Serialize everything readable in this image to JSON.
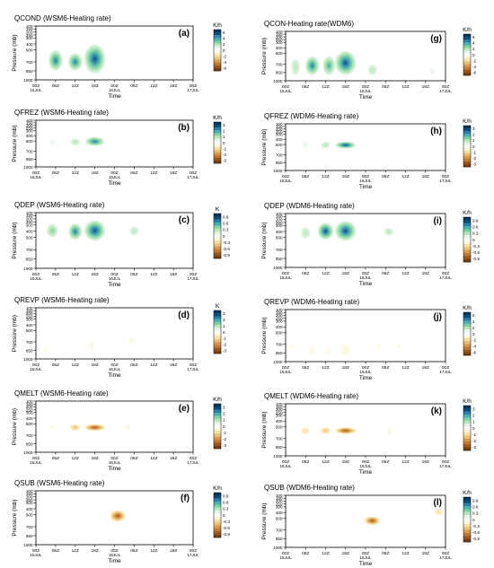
{
  "chart_data": [
    {
      "type": "heatmap",
      "letter": "(a)",
      "title": "QCOND (WSM6-Heating rate)",
      "xlabel": "Time",
      "ylabel": "Pressure (mb)",
      "x_ticks": [
        "00Z",
        "06Z",
        "12Z",
        "18Z",
        "00Z",
        "06Z",
        "12Z",
        "18Z",
        "00Z"
      ],
      "date_labels": [
        "15JUL",
        "16JUL",
        "17JUL"
      ],
      "y_ticks": [
        100,
        150,
        200,
        250,
        300,
        400,
        500,
        700,
        850,
        1000
      ],
      "unit": "K/h",
      "colorbar_ticks": [
        6,
        4,
        2,
        0,
        -2,
        -4,
        -6
      ],
      "features": [
        {
          "time_h": 6,
          "p_top": 500,
          "p_bot": 850,
          "value": 5
        },
        {
          "time_h": 12,
          "p_top": 550,
          "p_bot": 850,
          "value": 5
        },
        {
          "time_h": 18,
          "p_top": 400,
          "p_bot": 900,
          "value": 6
        }
      ]
    },
    {
      "type": "heatmap",
      "letter": "(g)",
      "title": "QCON-Heating rate(WDM6)",
      "xlabel": "Time",
      "ylabel": "Pressure (mb)",
      "x_ticks": [
        "00Z",
        "06Z",
        "12Z",
        "18Z",
        "00Z",
        "06Z",
        "12Z",
        "18Z",
        "00Z"
      ],
      "date_labels": [
        "15JUL",
        "16JUL",
        "17JUL"
      ],
      "y_ticks": [
        100,
        150,
        200,
        250,
        300,
        400,
        500,
        700,
        850,
        1000
      ],
      "unit": "K/h",
      "colorbar_ticks": [
        6,
        4,
        2,
        0,
        -2,
        -4,
        -6
      ],
      "features": [
        {
          "time_h": 3,
          "p_top": 600,
          "p_bot": 900,
          "value": 2
        },
        {
          "time_h": 8,
          "p_top": 550,
          "p_bot": 900,
          "value": 5
        },
        {
          "time_h": 13,
          "p_top": 550,
          "p_bot": 900,
          "value": 4
        },
        {
          "time_h": 18,
          "p_top": 450,
          "p_bot": 900,
          "value": 6
        },
        {
          "time_h": 26,
          "p_top": 700,
          "p_bot": 900,
          "value": 2
        },
        {
          "time_h": 44,
          "p_top": 750,
          "p_bot": 900,
          "value": 1
        }
      ]
    },
    {
      "type": "heatmap",
      "letter": "(b)",
      "title": "QFREZ (WSM6-Heating rate)",
      "xlabel": "Time",
      "ylabel": "Pressure (mb)",
      "x_ticks": [
        "00Z",
        "06Z",
        "12Z",
        "18Z",
        "00Z",
        "06Z",
        "12Z",
        "18Z",
        "00Z"
      ],
      "date_labels": [
        "15JUL",
        "16JUL",
        "17JUL"
      ],
      "y_ticks": [
        100,
        150,
        200,
        250,
        300,
        400,
        500,
        700,
        850,
        1000
      ],
      "unit": "K/h",
      "colorbar_ticks": [
        3,
        2,
        1,
        0,
        -1,
        -2,
        -3
      ],
      "features": [
        {
          "time_h": 5,
          "p_top": 480,
          "p_bot": 560,
          "value": 0.6
        },
        {
          "time_h": 12,
          "p_top": 480,
          "p_bot": 560,
          "value": 1.2
        },
        {
          "time_h": 18,
          "p_top": 420,
          "p_bot": 600,
          "value": 2.5
        }
      ]
    },
    {
      "type": "heatmap",
      "letter": "(h)",
      "title": "QFREZ (WDM6-Heating rate)",
      "xlabel": "Time",
      "ylabel": "Pressure (mb)",
      "x_ticks": [
        "00Z",
        "06Z",
        "12Z",
        "18Z",
        "00Z",
        "06Z",
        "12Z",
        "18Z",
        "00Z"
      ],
      "date_labels": [
        "15JUL",
        "16JUL",
        "17JUL"
      ],
      "y_ticks": [
        100,
        150,
        200,
        250,
        300,
        400,
        500,
        700,
        850,
        1000
      ],
      "unit": "K/h",
      "colorbar_ticks": [
        3,
        2,
        1,
        0,
        -1,
        -2,
        -3
      ],
      "features": [
        {
          "time_h": 6,
          "p_top": 470,
          "p_bot": 550,
          "value": 0.6
        },
        {
          "time_h": 12,
          "p_top": 470,
          "p_bot": 550,
          "value": 1
        },
        {
          "time_h": 18,
          "p_top": 440,
          "p_bot": 580,
          "value": 2.8
        }
      ]
    },
    {
      "type": "heatmap",
      "letter": "(c)",
      "title": "QDEP (WSM6-Heating rate)",
      "xlabel": "Time",
      "ylabel": "Pressure (mb)",
      "x_ticks": [
        "00Z",
        "06Z",
        "12Z",
        "18Z",
        "00Z",
        "06Z",
        "12Z",
        "18Z",
        "00Z"
      ],
      "date_labels": [
        "15JUL",
        "16JUL",
        "17JUL"
      ],
      "y_ticks": [
        100,
        150,
        200,
        250,
        300,
        400,
        500,
        700,
        850,
        1000
      ],
      "unit": "K",
      "colorbar_ticks": [
        0.9,
        0.6,
        0.3,
        0,
        -0.3,
        -0.6,
        -0.9
      ],
      "features": [
        {
          "time_h": 5,
          "p_top": 280,
          "p_bot": 500,
          "value": 0.5
        },
        {
          "time_h": 12,
          "p_top": 270,
          "p_bot": 540,
          "value": 0.7
        },
        {
          "time_h": 18,
          "p_top": 220,
          "p_bot": 560,
          "value": 0.9
        },
        {
          "time_h": 30,
          "p_top": 320,
          "p_bot": 470,
          "value": 0.3
        }
      ]
    },
    {
      "type": "heatmap",
      "letter": "(i)",
      "title": "QDEP (WDM6-Heating rate)",
      "xlabel": "Time",
      "ylabel": "Pressure (mb)",
      "x_ticks": [
        "00Z",
        "06Z",
        "12Z",
        "18Z",
        "00Z",
        "06Z",
        "12Z",
        "18Z",
        "00Z"
      ],
      "date_labels": [
        "15JUL",
        "16JUL",
        "17JUL"
      ],
      "y_ticks": [
        100,
        150,
        200,
        250,
        300,
        400,
        500,
        700,
        850,
        1000
      ],
      "unit": "K/h",
      "colorbar_ticks": [
        0.9,
        0.6,
        0.3,
        0,
        -0.3,
        -0.6,
        -0.9
      ],
      "features": [
        {
          "time_h": 6,
          "p_top": 320,
          "p_bot": 520,
          "value": 0.3
        },
        {
          "time_h": 12,
          "p_top": 250,
          "p_bot": 540,
          "value": 0.9
        },
        {
          "time_h": 18,
          "p_top": 220,
          "p_bot": 560,
          "value": 0.9
        },
        {
          "time_h": 31,
          "p_top": 340,
          "p_bot": 470,
          "value": 0.3
        }
      ]
    },
    {
      "type": "heatmap",
      "letter": "(d)",
      "title": "QREVP (WSM6-Heating rate)",
      "xlabel": "Time",
      "ylabel": "Pressure (mb)",
      "x_ticks": [
        "00Z",
        "06Z",
        "12Z",
        "18Z",
        "00Z",
        "06Z",
        "12Z",
        "18Z",
        "00Z"
      ],
      "date_labels": [
        "15JUL",
        "16JUL",
        "17JUL"
      ],
      "y_ticks": [
        100,
        150,
        200,
        250,
        300,
        400,
        500,
        700,
        850,
        1000
      ],
      "unit": "K",
      "colorbar_ticks": [
        3,
        2,
        1,
        0,
        -1,
        -2,
        -3
      ],
      "features": [
        {
          "time_h": 3,
          "p_top": 780,
          "p_bot": 900,
          "value": -0.5
        },
        {
          "time_h": 17,
          "p_top": 650,
          "p_bot": 900,
          "value": -0.5
        },
        {
          "time_h": 29,
          "p_top": 600,
          "p_bot": 760,
          "value": -0.6
        }
      ]
    },
    {
      "type": "heatmap",
      "letter": "(j)",
      "title": "QREVP (WDM6-Heating rate)",
      "xlabel": "Time",
      "ylabel": "Pressure (mb)",
      "x_ticks": [
        "00Z",
        "06Z",
        "12Z",
        "18Z",
        "00Z",
        "06Z",
        "12Z",
        "18Z",
        "00Z"
      ],
      "date_labels": [
        "15JUL",
        "16JUL",
        "17JUL"
      ],
      "y_ticks": [
        100,
        150,
        200,
        250,
        300,
        400,
        500,
        700,
        850,
        1000
      ],
      "unit": "K/h",
      "colorbar_ticks": [
        6,
        4,
        2,
        0,
        -2,
        -4,
        -6
      ],
      "features": [
        {
          "time_h": 2,
          "p_top": 680,
          "p_bot": 820,
          "value": -0.5
        },
        {
          "time_h": 8,
          "p_top": 700,
          "p_bot": 900,
          "value": -0.5
        },
        {
          "time_h": 13,
          "p_top": 700,
          "p_bot": 900,
          "value": -0.5
        },
        {
          "time_h": 18,
          "p_top": 650,
          "p_bot": 950,
          "value": -1
        },
        {
          "time_h": 28,
          "p_top": 680,
          "p_bot": 800,
          "value": -0.5
        },
        {
          "time_h": 34,
          "p_top": 680,
          "p_bot": 800,
          "value": -0.5
        }
      ]
    },
    {
      "type": "heatmap",
      "letter": "(e)",
      "title": "QMELT (WSM6-Heating rate)",
      "xlabel": "Time",
      "ylabel": "Pressure (mb)",
      "x_ticks": [
        "00Z",
        "06Z",
        "12Z",
        "18Z",
        "00Z",
        "06Z",
        "12Z",
        "18Z",
        "00Z"
      ],
      "date_labels": [
        "15JUL",
        "16JUL",
        "17JUL"
      ],
      "y_ticks": [
        100,
        150,
        200,
        250,
        300,
        400,
        500,
        700,
        850,
        1000
      ],
      "unit": "K/h",
      "colorbar_ticks": [
        3,
        2,
        1,
        0,
        -1,
        -2,
        -3
      ],
      "features": [
        {
          "time_h": 5,
          "p_top": 530,
          "p_bot": 600,
          "value": -0.6
        },
        {
          "time_h": 12,
          "p_top": 520,
          "p_bot": 610,
          "value": -1.5
        },
        {
          "time_h": 18,
          "p_top": 510,
          "p_bot": 620,
          "value": -3
        },
        {
          "time_h": 28,
          "p_top": 540,
          "p_bot": 600,
          "value": -0.4
        }
      ]
    },
    {
      "type": "heatmap",
      "letter": "(k)",
      "title": "QMELT (WDM6-Heating rate)",
      "xlabel": "Time",
      "ylabel": "Pressure (mb)",
      "x_ticks": [
        "00Z",
        "06Z",
        "12Z",
        "18Z",
        "00Z",
        "06Z",
        "12Z",
        "18Z",
        "00Z"
      ],
      "date_labels": [
        "15JUL",
        "16JUL",
        "17JUL"
      ],
      "y_ticks": [
        100,
        150,
        200,
        250,
        300,
        400,
        500,
        700,
        850,
        1000
      ],
      "unit": "K/h",
      "colorbar_ticks": [
        3,
        2,
        1,
        0,
        -1,
        -2,
        -3
      ],
      "features": [
        {
          "time_h": 6,
          "p_top": 530,
          "p_bot": 600,
          "value": -1
        },
        {
          "time_h": 12,
          "p_top": 520,
          "p_bot": 610,
          "value": -1.5
        },
        {
          "time_h": 18,
          "p_top": 510,
          "p_bot": 620,
          "value": -3
        },
        {
          "time_h": 31,
          "p_top": 540,
          "p_bot": 600,
          "value": -0.3
        }
      ]
    },
    {
      "type": "heatmap",
      "letter": "(f)",
      "title": "QSUB (WSM6-Heating rate)",
      "xlabel": "Time",
      "ylabel": "Pressure (mb)",
      "x_ticks": [
        "00Z",
        "06Z",
        "12Z",
        "18Z",
        "00Z",
        "06Z",
        "12Z",
        "18Z",
        "00Z"
      ],
      "date_labels": [
        "15JUL",
        "16JUL",
        "17JUL"
      ],
      "y_ticks": [
        100,
        150,
        200,
        250,
        300,
        400,
        500,
        700,
        850,
        1000
      ],
      "unit": "K/h",
      "colorbar_ticks": [
        0.9,
        0.6,
        0.3,
        0,
        -0.3,
        -0.6,
        -0.9
      ],
      "features": [
        {
          "time_h": 25,
          "p_top": 420,
          "p_bot": 620,
          "value": -0.9
        }
      ]
    },
    {
      "type": "heatmap",
      "letter": "(l)",
      "title": "QSUB (WDM6-Heating rate)",
      "xlabel": "Time",
      "ylabel": "Pressure (mb)",
      "x_ticks": [
        "00Z",
        "06Z",
        "12Z",
        "18Z",
        "00Z",
        "06Z",
        "12Z",
        "18Z",
        "00Z"
      ],
      "date_labels": [
        "15JUL",
        "16JUL",
        "17JUL"
      ],
      "y_ticks": [
        100,
        150,
        200,
        250,
        300,
        400,
        500,
        700,
        850,
        1000
      ],
      "unit": "K/h",
      "colorbar_ticks": [
        0.9,
        0.6,
        0.3,
        0,
        -0.3,
        -0.6,
        -0.9
      ],
      "features": [
        {
          "time_h": 26,
          "p_top": 460,
          "p_bot": 620,
          "value": -0.9
        },
        {
          "time_h": 46,
          "p_top": 330,
          "p_bot": 450,
          "value": -0.3
        }
      ]
    }
  ]
}
